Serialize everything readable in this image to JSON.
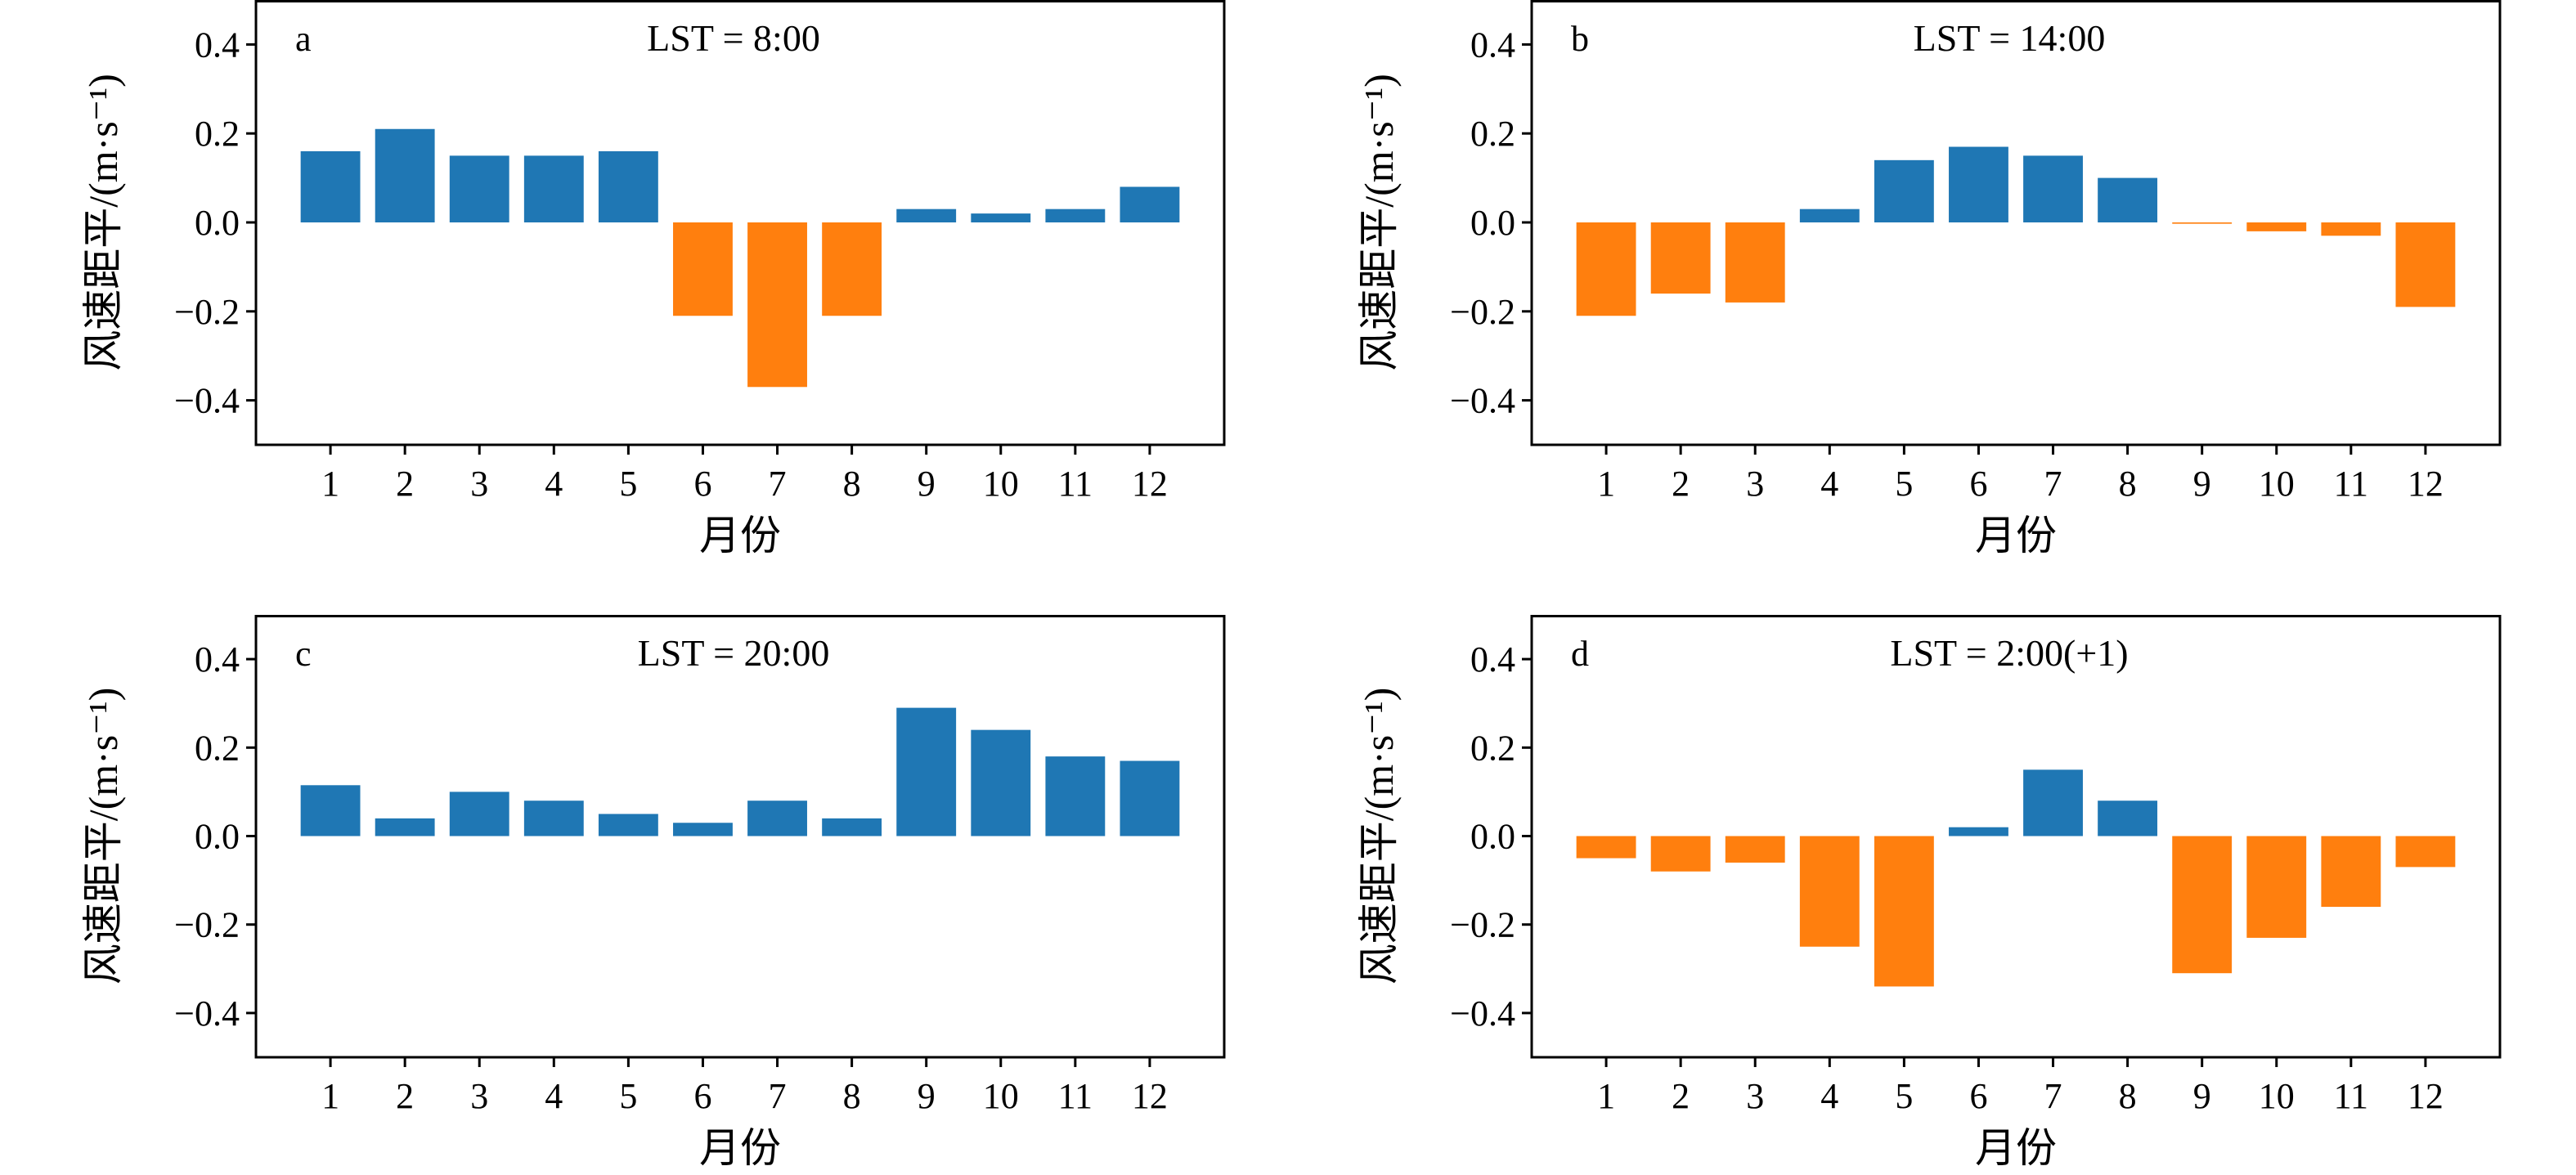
{
  "chart_data": [
    {
      "type": "bar",
      "panel_label": "a",
      "title": "LST = 8:00",
      "xlabel": "月份",
      "ylabel": "风速距平/(m·s⁻¹)",
      "categories": [
        "1",
        "2",
        "3",
        "4",
        "5",
        "6",
        "7",
        "8",
        "9",
        "10",
        "11",
        "12"
      ],
      "values": [
        0.16,
        0.21,
        0.15,
        0.15,
        0.16,
        -0.21,
        -0.37,
        -0.21,
        0.03,
        0.02,
        0.03,
        0.08
      ],
      "ylim": [
        -0.5,
        0.5
      ],
      "yticks": [
        "0.4",
        "0.2",
        "0.0",
        "−0.2",
        "−0.4"
      ],
      "positive_color": "#1f77b4",
      "negative_color": "#ff7f0e",
      "grid": false
    },
    {
      "type": "bar",
      "panel_label": "b",
      "title": "LST = 14:00",
      "xlabel": "月份",
      "ylabel": "风速距平/(m·s⁻¹)",
      "categories": [
        "1",
        "2",
        "3",
        "4",
        "5",
        "6",
        "7",
        "8",
        "9",
        "10",
        "11",
        "12"
      ],
      "values": [
        -0.21,
        -0.16,
        -0.18,
        0.03,
        0.14,
        0.17,
        0.15,
        0.1,
        -0.003,
        -0.02,
        -0.03,
        -0.19
      ],
      "ylim": [
        -0.5,
        0.5
      ],
      "yticks": [
        "0.4",
        "0.2",
        "0.0",
        "−0.2",
        "−0.4"
      ],
      "positive_color": "#1f77b4",
      "negative_color": "#ff7f0e",
      "grid": false
    },
    {
      "type": "bar",
      "panel_label": "c",
      "title": "LST = 20:00",
      "xlabel": "月份",
      "ylabel": "风速距平/(m·s⁻¹)",
      "categories": [
        "1",
        "2",
        "3",
        "4",
        "5",
        "6",
        "7",
        "8",
        "9",
        "10",
        "11",
        "12"
      ],
      "values": [
        0.115,
        0.04,
        0.1,
        0.08,
        0.05,
        0.03,
        0.08,
        0.04,
        0.29,
        0.24,
        0.18,
        0.17
      ],
      "ylim": [
        -0.5,
        0.5
      ],
      "yticks": [
        "0.4",
        "0.2",
        "0.0",
        "−0.2",
        "−0.4"
      ],
      "positive_color": "#1f77b4",
      "negative_color": "#ff7f0e",
      "grid": false
    },
    {
      "type": "bar",
      "panel_label": "d",
      "title": "LST = 2:00(+1)",
      "xlabel": "月份",
      "ylabel": "风速距平/(m·s⁻¹)",
      "categories": [
        "1",
        "2",
        "3",
        "4",
        "5",
        "6",
        "7",
        "8",
        "9",
        "10",
        "11",
        "12"
      ],
      "values": [
        -0.05,
        -0.08,
        -0.06,
        -0.25,
        -0.34,
        0.02,
        0.15,
        0.08,
        -0.31,
        -0.23,
        -0.16,
        -0.07
      ],
      "ylim": [
        -0.5,
        0.5
      ],
      "yticks": [
        "0.4",
        "0.2",
        "0.0",
        "−0.2",
        "−0.4"
      ],
      "positive_color": "#1f77b4",
      "negative_color": "#ff7f0e",
      "grid": false
    }
  ]
}
